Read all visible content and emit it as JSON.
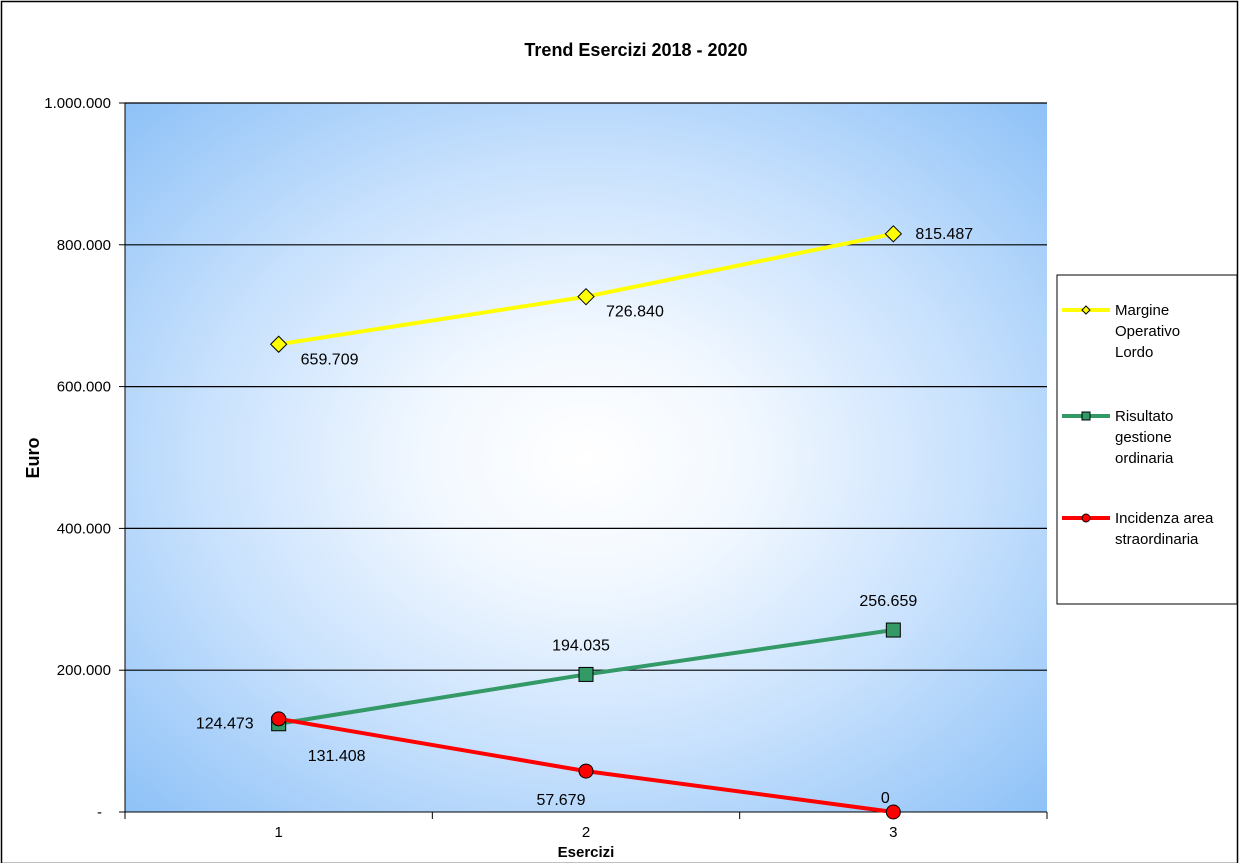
{
  "chart_data": {
    "type": "line",
    "title": "Trend Esercizi 2018 - 2020",
    "xlabel": "Esercizi",
    "ylabel": "Euro",
    "categories": [
      "1",
      "2",
      "3"
    ],
    "ylim": [
      0,
      1000000
    ],
    "yticks": [
      {
        "value": 0,
        "label": "-"
      },
      {
        "value": 200000,
        "label": "200.000"
      },
      {
        "value": 400000,
        "label": "400.000"
      },
      {
        "value": 600000,
        "label": "600.000"
      },
      {
        "value": 800000,
        "label": "800.000"
      },
      {
        "value": 1000000,
        "label": "1.000.000"
      }
    ],
    "grid": true,
    "legend_position": "right",
    "series": [
      {
        "name": "Margine Operativo Lordo",
        "legend_lines": [
          "Margine",
          "Operativo",
          "Lordo"
        ],
        "values": [
          659709,
          726840,
          815487
        ],
        "labels": [
          "659.709",
          "726.840",
          "815.487"
        ],
        "color": "#ffff00",
        "marker": "diamond"
      },
      {
        "name": "Risultato gestione ordinaria",
        "legend_lines": [
          "Risultato",
          "gestione",
          "ordinaria"
        ],
        "values": [
          124473,
          194035,
          256659
        ],
        "labels": [
          "124.473",
          "194.035",
          "256.659"
        ],
        "color": "#339966",
        "marker": "square"
      },
      {
        "name": "Incidenza area straordinaria",
        "legend_lines": [
          "Incidenza area",
          "straordinaria"
        ],
        "values": [
          131408,
          57679,
          0
        ],
        "labels": [
          "131.408",
          "57.679",
          "0"
        ],
        "color": "#ff0000",
        "marker": "circle"
      }
    ]
  }
}
